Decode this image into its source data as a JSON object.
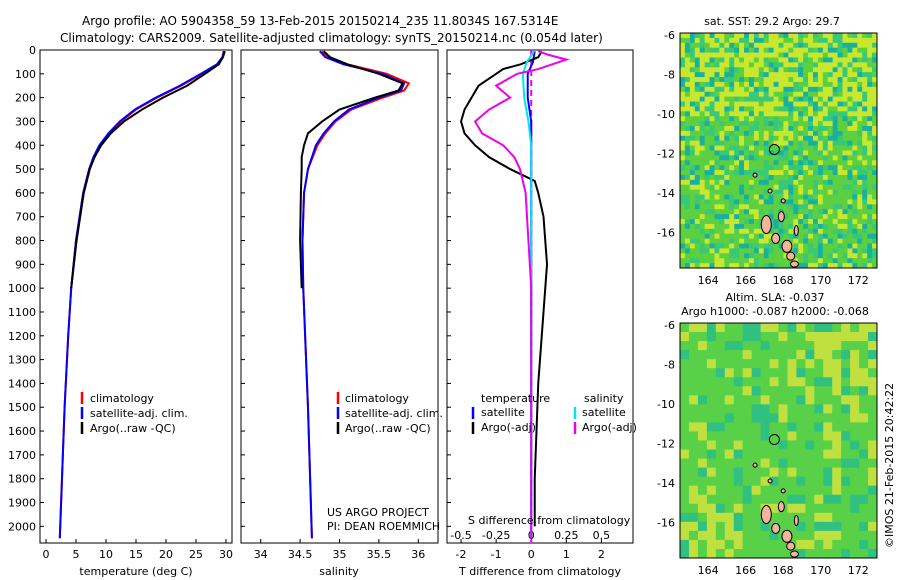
{
  "header": {
    "line1": "Argo profile: AO 5904358_59 13-Feb-2015 20150214_235 11.8034S 167.5314E",
    "line2": "Climatology: CARS2009. Satellite-adjusted climatology: synTS_20150214.nc (0.054d later)"
  },
  "chart_data": [
    {
      "type": "line",
      "name": "temperature-profile",
      "xlabel": "temperature (deg C)",
      "ylabel": "",
      "xlim": [
        -1,
        31
      ],
      "ylim": [
        2070,
        0
      ],
      "xticks": [
        0,
        5,
        10,
        15,
        20,
        25,
        30
      ],
      "yticks": [
        0,
        100,
        200,
        300,
        400,
        500,
        600,
        700,
        800,
        900,
        1000,
        1100,
        1200,
        1300,
        1400,
        1500,
        1600,
        1700,
        1800,
        1900,
        2000
      ],
      "legend": [
        "climatology",
        "satellite-adj. clim.",
        "Argo(..raw -QC)"
      ],
      "series": [
        {
          "name": "climatology",
          "color": "#ff0000",
          "depth": [
            5,
            30,
            60,
            100,
            150,
            200,
            250,
            300,
            350,
            400,
            450,
            500,
            600,
            800,
            1000,
            1200,
            1500,
            2050
          ],
          "values": [
            29.6,
            29.4,
            28.6,
            26.0,
            22.5,
            18.5,
            15.0,
            12.5,
            10.5,
            9.0,
            8.0,
            7.2,
            6.2,
            5.0,
            4.2,
            3.7,
            3.1,
            2.3
          ]
        },
        {
          "name": "satellite-adj. clim.",
          "color": "#0000ff",
          "depth": [
            5,
            30,
            60,
            100,
            150,
            200,
            250,
            300,
            350,
            400,
            450,
            500,
            600,
            800,
            1000,
            1200,
            1500,
            2050
          ],
          "values": [
            29.7,
            29.4,
            28.5,
            25.8,
            22.3,
            18.3,
            14.8,
            12.3,
            10.4,
            8.9,
            7.9,
            7.2,
            6.2,
            5.0,
            4.2,
            3.7,
            3.1,
            2.3
          ]
        },
        {
          "name": "Argo(..raw -QC)",
          "color": "#000000",
          "depth": [
            5,
            30,
            60,
            100,
            150,
            200,
            250,
            300,
            350,
            400,
            450,
            500,
            600,
            800,
            1000
          ],
          "values": [
            29.8,
            29.5,
            28.8,
            26.5,
            23.5,
            19.5,
            16.0,
            13.0,
            10.8,
            9.2,
            8.1,
            7.3,
            6.3,
            5.1,
            4.2
          ]
        }
      ]
    },
    {
      "type": "line",
      "name": "salinity-profile",
      "xlabel": "salinity",
      "xlim": [
        33.75,
        36.25
      ],
      "ylim": [
        2070,
        0
      ],
      "xticks": [
        34,
        34.5,
        35,
        35.5,
        36
      ],
      "legend": [
        "climatology",
        "satellite-adj. clim.",
        "Argo(..raw -QC)"
      ],
      "annotation": [
        "US ARGO PROJECT",
        "PI: DEAN ROEMMICH"
      ],
      "series": [
        {
          "name": "climatology",
          "color": "#ff0000",
          "depth": [
            5,
            30,
            60,
            100,
            140,
            170,
            200,
            250,
            300,
            350,
            400,
            500,
            600,
            800,
            1000,
            1500,
            2050
          ],
          "values": [
            34.78,
            34.85,
            35.1,
            35.6,
            35.88,
            35.82,
            35.55,
            35.15,
            34.95,
            34.82,
            34.72,
            34.6,
            34.55,
            34.53,
            34.54,
            34.6,
            34.65
          ]
        },
        {
          "name": "satellite-adj. clim.",
          "color": "#0000ff",
          "depth": [
            5,
            30,
            60,
            100,
            140,
            170,
            200,
            250,
            300,
            350,
            400,
            500,
            600,
            800,
            1000,
            1500,
            2050
          ],
          "values": [
            34.75,
            34.82,
            35.05,
            35.55,
            35.82,
            35.78,
            35.5,
            35.12,
            34.93,
            34.8,
            34.7,
            34.6,
            34.55,
            34.53,
            34.54,
            34.6,
            34.65
          ]
        },
        {
          "name": "Argo(..raw -QC)",
          "color": "#000000",
          "depth": [
            5,
            30,
            60,
            100,
            140,
            170,
            200,
            250,
            300,
            350,
            400,
            450,
            500,
            600,
            800,
            1000
          ],
          "values": [
            34.8,
            34.88,
            35.1,
            35.5,
            35.8,
            35.75,
            35.45,
            35.0,
            34.78,
            34.6,
            34.55,
            34.52,
            34.52,
            34.51,
            34.5,
            34.52
          ]
        }
      ]
    },
    {
      "type": "line",
      "name": "difference-profile",
      "xlabel": "T difference from climatology",
      "x2label": "S difference from climatology",
      "xlim": [
        -2.4,
        2.9
      ],
      "ylim": [
        2070,
        0
      ],
      "xticks": [
        -2,
        -1,
        0,
        1,
        2
      ],
      "x2ticks": [
        -0.5,
        -0.25,
        0,
        0.25,
        0.5
      ],
      "legend_titles": [
        "temperature",
        "salinity"
      ],
      "legend": [
        "satellite",
        "Argo(-adj)",
        "satellite",
        "Argo(-adj)"
      ],
      "series": [
        {
          "name": "temperature satellite",
          "color": "#0000ff",
          "depth": [
            5,
            50,
            100,
            200,
            300,
            400,
            500,
            600,
            800,
            1000,
            2050
          ],
          "values": [
            0.1,
            0.05,
            -0.1,
            -0.1,
            0,
            0,
            0,
            0,
            0,
            0,
            0
          ]
        },
        {
          "name": "temperature Argo(-adj)",
          "color": "#000000",
          "depth": [
            5,
            30,
            60,
            80,
            100,
            150,
            200,
            250,
            300,
            350,
            400,
            450,
            500,
            550,
            600,
            700,
            800,
            900,
            1000,
            1200,
            1400,
            1600,
            1800,
            2000
          ],
          "values": [
            0.3,
            0.2,
            -0.3,
            -0.8,
            -1.0,
            -1.5,
            -1.7,
            -1.9,
            -2.0,
            -1.9,
            -1.6,
            -1.2,
            -0.6,
            0.1,
            0.2,
            0.35,
            0.4,
            0.45,
            0.4,
            0.3,
            0.2,
            0.15,
            0.1,
            0.1
          ]
        },
        {
          "name": "salinity satellite",
          "color": "#00e5ee",
          "depth": [
            5,
            50,
            100,
            200,
            300,
            400,
            500,
            600,
            800,
            1000,
            2050
          ],
          "values": [
            0.02,
            -0.03,
            -0.06,
            -0.05,
            -0.02,
            0,
            0,
            0,
            0,
            0,
            0
          ]
        },
        {
          "name": "salinity Argo(-adj)",
          "color": "#ee00ee",
          "depth": [
            5,
            20,
            40,
            60,
            80,
            100,
            150,
            200,
            250,
            300,
            350,
            400,
            450,
            500,
            600,
            800,
            1000,
            1500,
            2050
          ],
          "values": [
            0.05,
            0.12,
            0.25,
            0.15,
            0.05,
            -0.1,
            -0.25,
            -0.15,
            -0.3,
            -0.4,
            -0.35,
            -0.2,
            -0.12,
            -0.08,
            -0.04,
            -0.02,
            0,
            0,
            0
          ]
        }
      ]
    },
    {
      "type": "heatmap",
      "name": "sst-map",
      "title": "sat. SST: 29.2  Argo: 29.7",
      "xticks": [
        164,
        166,
        168,
        170,
        172
      ],
      "yticks": [
        -6,
        -8,
        -10,
        -12,
        -14,
        -16
      ],
      "xlim": [
        162.5,
        173
      ],
      "ylim": [
        -17.8,
        -5.9
      ]
    },
    {
      "type": "heatmap",
      "name": "sla-map",
      "title": "Altim. SLA: -0.037",
      "subtitle": "Argo h1000: -0.087 h2000: -0.068",
      "xticks": [
        164,
        166,
        168,
        170,
        172
      ],
      "yticks": [
        -6,
        -8,
        -10,
        -12,
        -14,
        -16
      ],
      "xlim": [
        162.5,
        173
      ],
      "ylim": [
        -17.8,
        -5.9
      ]
    }
  ],
  "footer": {
    "credit": "©IMOS 21-Feb-2015 20:42:22"
  },
  "colors": {
    "clim": "#ff0000",
    "sat": "#0000ff",
    "argo": "#000000",
    "cyan": "#00e5ee",
    "magenta": "#ee00ee",
    "land": "#f2b49a"
  }
}
